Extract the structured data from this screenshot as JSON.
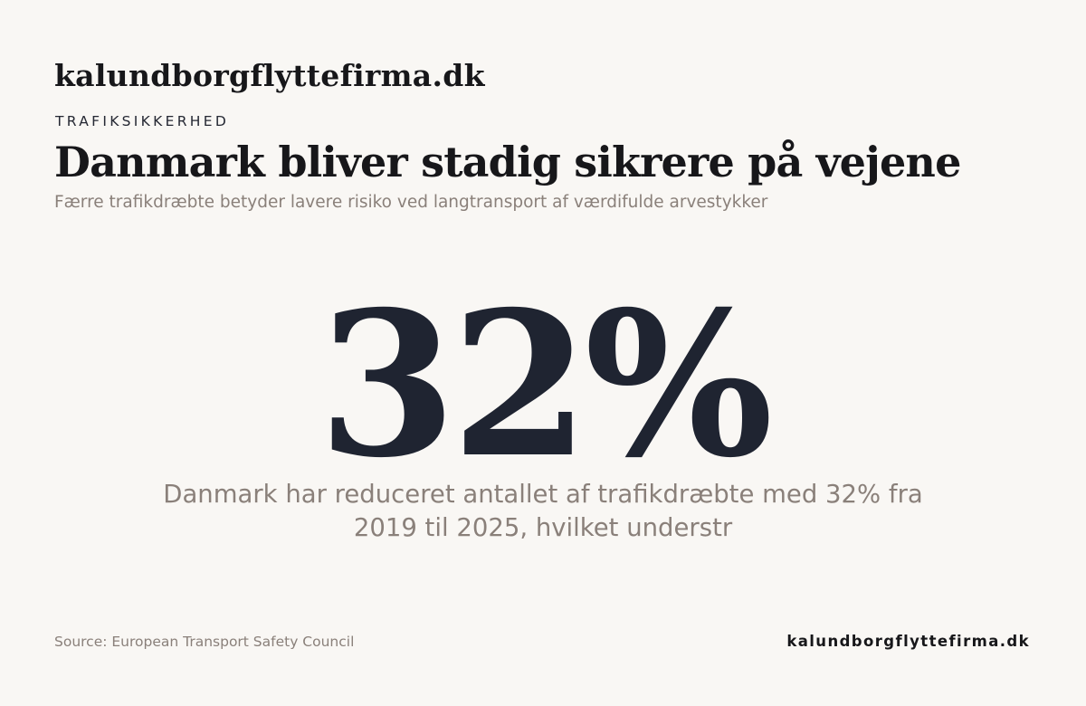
{
  "header": {
    "brand": "kalundborgflyttefirma.dk",
    "eyebrow": "TRAFIKSIKKERHED",
    "title": "Danmark bliver stadig sikrere på vejene",
    "subtitle": "Færre trafikdræbte betyder lavere risiko ved langtransport af værdifulde arvestykker"
  },
  "stat": {
    "value": "32%",
    "description": "Danmark har reduceret antallet af trafikdræbte med 32% fra 2019 til 2025, hvilket understr"
  },
  "footer": {
    "source": "Source: European Transport Safety Council",
    "brand": "kalundborgflyttefirma.dk"
  },
  "colors": {
    "background": "#f9f7f4",
    "ink": "#17171a",
    "stat": "#1f2431",
    "muted": "#8a807a"
  }
}
